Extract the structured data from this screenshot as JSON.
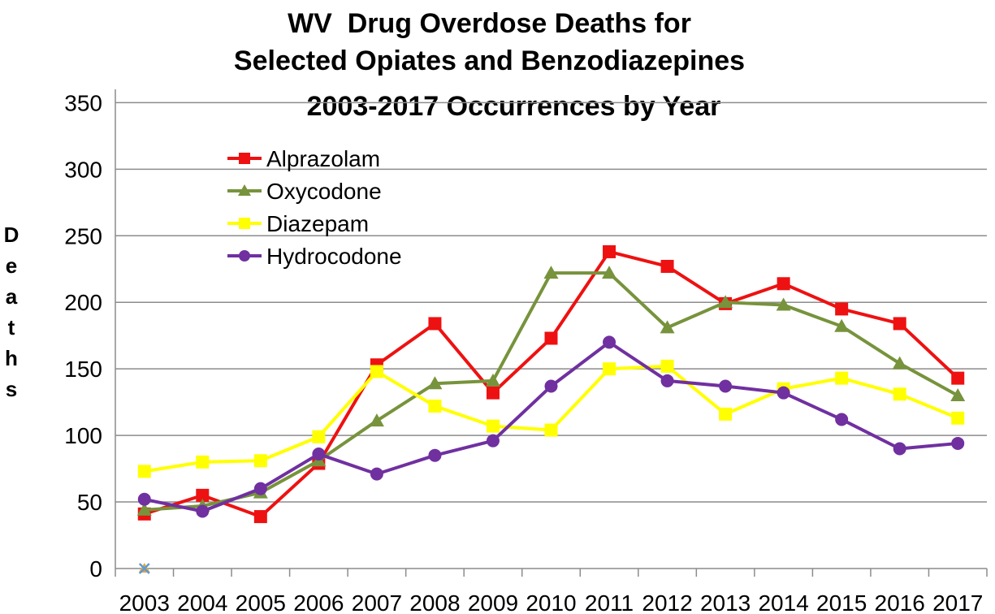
{
  "chart_data": {
    "type": "line",
    "title_lines": [
      "WV  Drug Overdose Deaths for",
      "Selected Opiates and Benzodiazepines",
      "2003-2017 Occurrences by Year"
    ],
    "ylabel": "Deaths",
    "xlabel": "",
    "categories": [
      "2003",
      "2004",
      "2005",
      "2006",
      "2007",
      "2008",
      "2009",
      "2010",
      "2011",
      "2012",
      "2013",
      "2014",
      "2015",
      "2016",
      "2017"
    ],
    "yticks": [
      0,
      50,
      100,
      150,
      200,
      250,
      300,
      350
    ],
    "ylim": [
      0,
      360
    ],
    "grid": "horizontal",
    "legend_position": "top-left",
    "series": [
      {
        "name": "Alprazolam",
        "color": "#ee1111",
        "marker": "square",
        "values": [
          41,
          55,
          39,
          79,
          153,
          184,
          132,
          173,
          238,
          227,
          199,
          214,
          195,
          184,
          143
        ]
      },
      {
        "name": "Oxycodone",
        "color": "#77933c",
        "marker": "triangle",
        "values": [
          44,
          47,
          57,
          81,
          111,
          139,
          141,
          222,
          222,
          181,
          200,
          198,
          182,
          154,
          130
        ]
      },
      {
        "name": "Diazepam",
        "color": "#ffff00",
        "marker": "square",
        "values": [
          73,
          80,
          81,
          99,
          148,
          122,
          107,
          104,
          150,
          152,
          116,
          135,
          143,
          131,
          113
        ]
      },
      {
        "name": "Hydrocodone",
        "color": "#7030a0",
        "marker": "circle",
        "values": [
          52,
          43,
          60,
          86,
          71,
          85,
          96,
          137,
          170,
          141,
          137,
          132,
          112,
          90,
          94
        ]
      }
    ],
    "extra_markers": [
      {
        "category": "2003",
        "value": 0,
        "color": "#e8a33a",
        "marker": "triangle"
      },
      {
        "category": "2003",
        "value": 0,
        "color": "#5b9bd5",
        "marker": "x"
      }
    ]
  }
}
